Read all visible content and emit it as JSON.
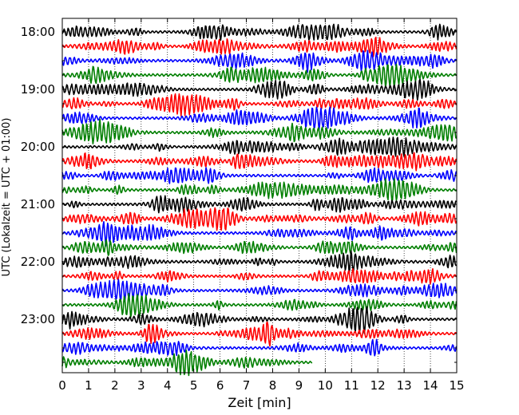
{
  "chart_data": {
    "type": "line",
    "title": "",
    "xlabel": "Zeit  [min]",
    "ylabel": "UTC (Lokalzeit = UTC + 01:00)",
    "xlim": [
      0,
      15
    ],
    "x_ticks": [
      "0",
      "1",
      "2",
      "3",
      "4",
      "5",
      "6",
      "7",
      "8",
      "9",
      "10",
      "11",
      "12",
      "13",
      "14",
      "15"
    ],
    "y_tick_labels": [
      "18:00",
      "19:00",
      "20:00",
      "21:00",
      "22:00",
      "23:00"
    ],
    "trace_interval_min": 15,
    "grid": "vertical dotted",
    "line_colors": [
      "#000000",
      "#ff0000",
      "#0000ff",
      "#007f00"
    ],
    "series": [
      {
        "start": "18:00",
        "color": "#000000",
        "x_end": 15
      },
      {
        "start": "18:15",
        "color": "#ff0000",
        "x_end": 15
      },
      {
        "start": "18:30",
        "color": "#0000ff",
        "x_end": 15
      },
      {
        "start": "18:45",
        "color": "#007f00",
        "x_end": 15
      },
      {
        "start": "19:00",
        "color": "#000000",
        "x_end": 15
      },
      {
        "start": "19:15",
        "color": "#ff0000",
        "x_end": 15
      },
      {
        "start": "19:30",
        "color": "#0000ff",
        "x_end": 15
      },
      {
        "start": "19:45",
        "color": "#007f00",
        "x_end": 15
      },
      {
        "start": "20:00",
        "color": "#000000",
        "x_end": 15
      },
      {
        "start": "20:15",
        "color": "#ff0000",
        "x_end": 15
      },
      {
        "start": "20:30",
        "color": "#0000ff",
        "x_end": 15
      },
      {
        "start": "20:45",
        "color": "#007f00",
        "x_end": 15
      },
      {
        "start": "21:00",
        "color": "#000000",
        "x_end": 15
      },
      {
        "start": "21:15",
        "color": "#ff0000",
        "x_end": 15
      },
      {
        "start": "21:30",
        "color": "#0000ff",
        "x_end": 15
      },
      {
        "start": "21:45",
        "color": "#007f00",
        "x_end": 15
      },
      {
        "start": "22:00",
        "color": "#000000",
        "x_end": 15
      },
      {
        "start": "22:15",
        "color": "#ff0000",
        "x_end": 15
      },
      {
        "start": "22:30",
        "color": "#0000ff",
        "x_end": 15
      },
      {
        "start": "22:45",
        "color": "#007f00",
        "x_end": 15
      },
      {
        "start": "23:00",
        "color": "#000000",
        "x_end": 15
      },
      {
        "start": "23:15",
        "color": "#ff0000",
        "x_end": 15
      },
      {
        "start": "23:30",
        "color": "#0000ff",
        "x_end": 15
      },
      {
        "start": "23:45",
        "color": "#007f00",
        "x_end": 9.5
      }
    ]
  }
}
